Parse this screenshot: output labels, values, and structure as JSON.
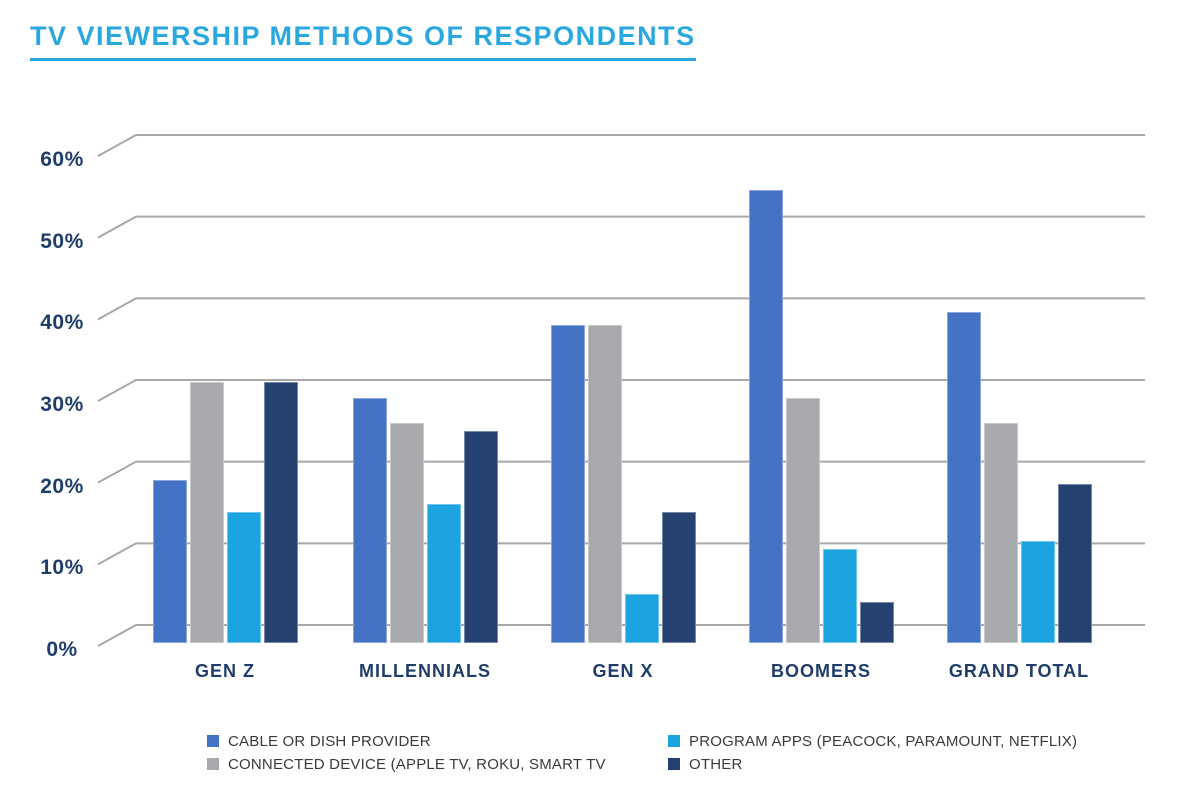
{
  "title": "TV VIEWERSHIP METHODS OF RESPONDENTS",
  "chart_data": {
    "type": "bar",
    "title": "TV VIEWERSHIP METHODS OF RESPONDENTS",
    "categories": [
      "GEN Z",
      "MILLENNIALS",
      "GEN X",
      "BOOMERS",
      "GRAND TOTAL"
    ],
    "series": [
      {
        "name": "CABLE OR DISH PROVIDER",
        "color": "#4472C4",
        "values": [
          20,
          30,
          39,
          55.5,
          40.5
        ]
      },
      {
        "name": "CONNECTED DEVICE (APPLE TV, ROKU, SMART TV",
        "color": "#A7A9AC",
        "values": [
          32,
          27,
          39,
          30,
          27
        ]
      },
      {
        "name": "PROGRAM APPS (PEACOCK, PARAMOUNT, NETFLIX)",
        "color": "#1BA4DF",
        "values": [
          16,
          17,
          6,
          11.5,
          12.5
        ]
      },
      {
        "name": "OTHER",
        "color": "#25416F",
        "values": [
          32,
          26,
          16,
          5,
          19.5
        ]
      }
    ],
    "y_ticks": [
      "60%",
      "50%",
      "40%",
      "30%",
      "20%",
      "10%",
      "0%"
    ],
    "ylabel": "",
    "xlabel": "",
    "ylim": [
      0,
      60
    ],
    "grid": true,
    "legend_position": "bottom",
    "legend_rows": [
      [
        "CABLE OR DISH PROVIDER",
        "PROGRAM APPS (PEACOCK, PARAMOUNT, NETFLIX)"
      ],
      [
        "CONNECTED DEVICE (APPLE TV, ROKU, SMART TV",
        "OTHER"
      ]
    ]
  },
  "colors": {
    "title": "#29A8E0",
    "axis_text": "#1E3D6B",
    "gridline": "#A7A7AC",
    "legend_text": "#3A3A3A",
    "background": "#FFFFFF"
  }
}
